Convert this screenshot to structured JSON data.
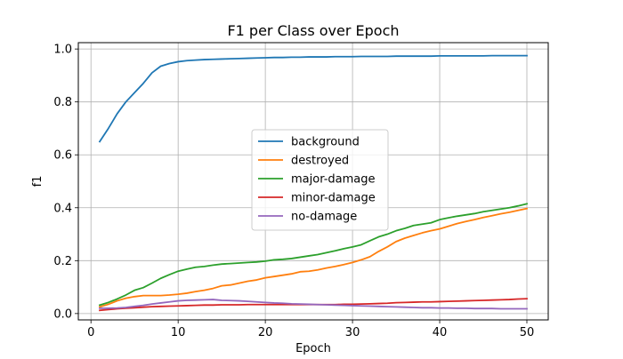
{
  "chart_data": {
    "type": "line",
    "title": "F1 per Class over Epoch",
    "xlabel": "Epoch",
    "ylabel": "f1",
    "xlim": [
      -1.45,
      52.45
    ],
    "ylim": [
      -0.024,
      1.024
    ],
    "xticks": [
      0,
      10,
      20,
      30,
      40,
      50
    ],
    "yticks": [
      0.0,
      0.2,
      0.4,
      0.6,
      0.8,
      1.0
    ],
    "xtick_labels": [
      "0",
      "10",
      "20",
      "30",
      "40",
      "50"
    ],
    "ytick_labels": [
      "0.0",
      "0.2",
      "0.4",
      "0.6",
      "0.8",
      "1.0"
    ],
    "grid": true,
    "legend_position": "center",
    "x": [
      1,
      2,
      3,
      4,
      5,
      6,
      7,
      8,
      9,
      10,
      11,
      12,
      13,
      14,
      15,
      16,
      17,
      18,
      19,
      20,
      21,
      22,
      23,
      24,
      25,
      26,
      27,
      28,
      29,
      30,
      31,
      32,
      33,
      34,
      35,
      36,
      37,
      38,
      39,
      40,
      41,
      42,
      43,
      44,
      45,
      46,
      47,
      48,
      49,
      50
    ],
    "series": [
      {
        "name": "background",
        "color": "#1f77b4",
        "values": [
          0.65,
          0.7,
          0.755,
          0.8,
          0.835,
          0.87,
          0.91,
          0.935,
          0.945,
          0.952,
          0.956,
          0.958,
          0.96,
          0.961,
          0.962,
          0.963,
          0.964,
          0.965,
          0.966,
          0.967,
          0.968,
          0.968,
          0.969,
          0.969,
          0.97,
          0.97,
          0.97,
          0.971,
          0.971,
          0.971,
          0.972,
          0.972,
          0.972,
          0.972,
          0.973,
          0.973,
          0.973,
          0.973,
          0.973,
          0.974,
          0.974,
          0.974,
          0.974,
          0.974,
          0.974,
          0.975,
          0.975,
          0.975,
          0.975,
          0.975
        ]
      },
      {
        "name": "destroyed",
        "color": "#ff7f0e",
        "values": [
          0.025,
          0.035,
          0.048,
          0.058,
          0.064,
          0.068,
          0.068,
          0.068,
          0.07,
          0.073,
          0.077,
          0.083,
          0.088,
          0.095,
          0.105,
          0.108,
          0.115,
          0.122,
          0.127,
          0.135,
          0.14,
          0.145,
          0.15,
          0.158,
          0.16,
          0.165,
          0.172,
          0.178,
          0.185,
          0.193,
          0.203,
          0.215,
          0.235,
          0.252,
          0.272,
          0.285,
          0.295,
          0.305,
          0.313,
          0.32,
          0.33,
          0.34,
          0.348,
          0.355,
          0.363,
          0.37,
          0.377,
          0.383,
          0.39,
          0.397
        ]
      },
      {
        "name": "major-damage",
        "color": "#2ca02c",
        "values": [
          0.032,
          0.042,
          0.055,
          0.07,
          0.088,
          0.098,
          0.115,
          0.133,
          0.147,
          0.16,
          0.168,
          0.175,
          0.178,
          0.183,
          0.187,
          0.189,
          0.191,
          0.193,
          0.195,
          0.198,
          0.203,
          0.205,
          0.208,
          0.213,
          0.218,
          0.223,
          0.23,
          0.237,
          0.245,
          0.252,
          0.26,
          0.275,
          0.29,
          0.3,
          0.313,
          0.322,
          0.333,
          0.338,
          0.343,
          0.355,
          0.362,
          0.368,
          0.373,
          0.378,
          0.385,
          0.39,
          0.395,
          0.4,
          0.407,
          0.415
        ]
      },
      {
        "name": "minor-damage",
        "color": "#d62728",
        "values": [
          0.012,
          0.015,
          0.018,
          0.02,
          0.022,
          0.024,
          0.026,
          0.027,
          0.028,
          0.029,
          0.03,
          0.031,
          0.032,
          0.032,
          0.033,
          0.033,
          0.033,
          0.034,
          0.034,
          0.034,
          0.034,
          0.034,
          0.034,
          0.034,
          0.034,
          0.034,
          0.034,
          0.034,
          0.035,
          0.035,
          0.036,
          0.037,
          0.038,
          0.039,
          0.041,
          0.042,
          0.043,
          0.044,
          0.044,
          0.045,
          0.046,
          0.047,
          0.048,
          0.049,
          0.05,
          0.051,
          0.052,
          0.053,
          0.055,
          0.056
        ]
      },
      {
        "name": "no-damage",
        "color": "#9467bd",
        "values": [
          0.02,
          0.02,
          0.021,
          0.023,
          0.027,
          0.031,
          0.036,
          0.04,
          0.044,
          0.048,
          0.05,
          0.051,
          0.052,
          0.053,
          0.05,
          0.049,
          0.048,
          0.046,
          0.044,
          0.042,
          0.04,
          0.039,
          0.037,
          0.036,
          0.035,
          0.034,
          0.033,
          0.032,
          0.031,
          0.03,
          0.029,
          0.028,
          0.027,
          0.026,
          0.025,
          0.024,
          0.023,
          0.022,
          0.022,
          0.021,
          0.021,
          0.02,
          0.02,
          0.019,
          0.019,
          0.019,
          0.018,
          0.018,
          0.018,
          0.018
        ]
      }
    ]
  }
}
